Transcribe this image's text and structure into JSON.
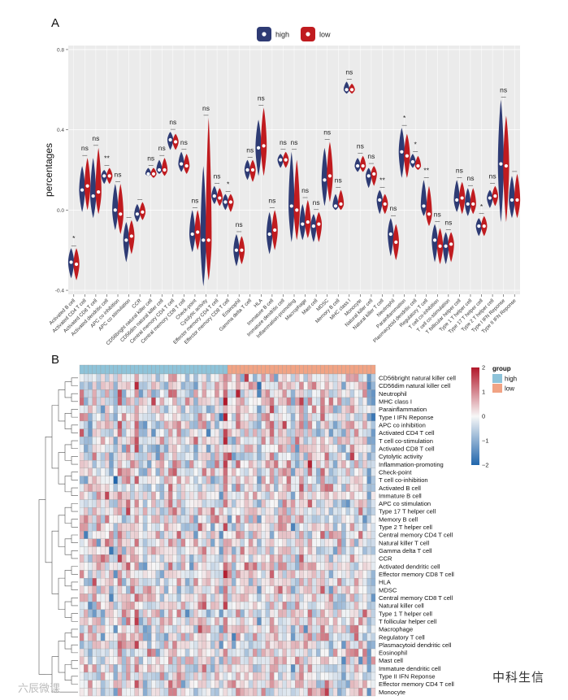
{
  "panel_a_label": "A",
  "panel_b_label": "B",
  "colors": {
    "high": "#2e3b74",
    "low": "#c01b1f",
    "group_high": "#8ec3d9",
    "group_low": "#f1a384",
    "heat_low": "#2166ac",
    "heat_mid": "#f7f7f7",
    "heat_high": "#b2182b"
  },
  "chart_data": [
    {
      "type": "violin",
      "title": "",
      "ylabel": "percentages",
      "ylim": [
        -0.42,
        0.82
      ],
      "yticks": [
        "-0.4",
        "0.0",
        "0.4",
        "0.8"
      ],
      "ytick_values": [
        -0.4,
        0.0,
        0.4,
        0.8
      ],
      "legend": [
        "high",
        "low"
      ],
      "categories": [
        "Activated B cell",
        "Activated CD4 T cell",
        "Activated CD8 T cell",
        "Activated dendritic cell",
        "APC co inhibition",
        "APC co stimulation",
        "CCR",
        "CD56bright natural killer cell",
        "CD56dim natural killer cell",
        "Central memory CD4 T cell",
        "Central memory CD8 T cell",
        "Check-point",
        "Cytolytic activity",
        "Effector memory CD4 T cell",
        "Effector memory CD8 T cell",
        "Eosinophil",
        "Gamma delta T cell",
        "HLA",
        "Immature B cell",
        "Immature dendritic cell",
        "Inflammation-promoting",
        "Macrophage",
        "Mast cell",
        "MDSC",
        "Memory B cell",
        "MHC class I",
        "Monocyte",
        "Natural killer cell",
        "Natural killer T cell",
        "Neutrophil",
        "Parainflammation",
        "Plasmacytoid dendritic cell",
        "Regulatory T cell",
        "T cell co-inhibition",
        "T cell co-stimulation",
        "T follicular helper cell",
        "Type 1 T helper cell",
        "Type 17 T helper cell",
        "Type 2 T helper cell",
        "Type I IFN Reponse",
        "Type II IFN Reponse"
      ],
      "significance": [
        "*",
        "ns",
        "ns",
        "**",
        "ns",
        "",
        "",
        "ns",
        "ns",
        "ns",
        "ns",
        "ns",
        "ns",
        "ns",
        "*",
        "ns",
        "ns",
        "ns",
        "ns",
        "ns",
        "ns",
        "ns",
        "ns",
        "ns",
        "ns",
        "ns",
        "ns",
        "ns",
        "**",
        "ns",
        "*",
        "*",
        "**",
        "ns",
        "ns",
        "ns",
        "ns",
        "*",
        "ns",
        "ns",
        ""
      ],
      "series": [
        {
          "name": "high",
          "medians": [
            -0.26,
            0.1,
            0.07,
            0.17,
            0.0,
            -0.15,
            -0.02,
            0.18,
            0.2,
            0.35,
            0.23,
            -0.12,
            -0.15,
            0.07,
            0.04,
            -0.2,
            0.2,
            0.31,
            -0.12,
            0.25,
            0.02,
            -0.07,
            -0.08,
            0.15,
            0.02,
            0.6,
            0.22,
            0.17,
            0.05,
            -0.12,
            0.29,
            0.24,
            0.02,
            -0.15,
            -0.18,
            0.05,
            0.03,
            -0.08,
            0.06,
            0.23,
            0.05
          ],
          "mins": [
            -0.34,
            -0.01,
            -0.04,
            0.13,
            -0.1,
            -0.26,
            -0.06,
            0.17,
            0.18,
            0.3,
            0.19,
            -0.21,
            -0.38,
            0.03,
            0.0,
            -0.28,
            0.15,
            0.17,
            -0.22,
            0.21,
            -0.16,
            -0.15,
            -0.16,
            0.02,
            0.0,
            0.58,
            0.19,
            0.11,
            -0.02,
            -0.23,
            0.16,
            0.21,
            -0.03,
            -0.26,
            -0.27,
            -0.01,
            -0.03,
            -0.13,
            0.01,
            -0.06,
            -0.04
          ],
          "maxs": [
            -0.19,
            0.22,
            0.26,
            0.2,
            0.13,
            -0.06,
            0.03,
            0.21,
            0.25,
            0.39,
            0.29,
            0.0,
            0.22,
            0.12,
            0.08,
            -0.12,
            0.25,
            0.45,
            -0.01,
            0.28,
            0.29,
            0.03,
            -0.02,
            0.31,
            0.08,
            0.64,
            0.26,
            0.21,
            0.1,
            -0.04,
            0.41,
            0.28,
            0.15,
            -0.07,
            -0.11,
            0.15,
            0.11,
            -0.04,
            0.1,
            0.55,
            0.17
          ]
        },
        {
          "name": "low",
          "medians": [
            -0.27,
            0.12,
            0.09,
            0.17,
            -0.02,
            -0.13,
            -0.01,
            0.18,
            0.2,
            0.34,
            0.22,
            -0.11,
            -0.15,
            0.06,
            0.04,
            -0.2,
            0.2,
            0.32,
            -0.1,
            0.25,
            0.0,
            -0.06,
            -0.07,
            0.17,
            0.03,
            0.6,
            0.22,
            0.18,
            0.03,
            -0.16,
            0.27,
            0.22,
            -0.02,
            -0.18,
            -0.17,
            0.06,
            0.03,
            -0.08,
            0.07,
            0.22,
            0.05
          ],
          "mins": [
            -0.35,
            0.0,
            -0.02,
            0.13,
            -0.12,
            -0.22,
            -0.05,
            0.16,
            0.17,
            0.3,
            0.18,
            -0.2,
            -0.35,
            0.02,
            -0.01,
            -0.27,
            0.14,
            0.17,
            -0.2,
            0.21,
            -0.15,
            -0.14,
            -0.16,
            0.04,
            0.0,
            0.58,
            0.19,
            0.12,
            -0.02,
            -0.25,
            0.16,
            0.2,
            -0.08,
            -0.27,
            -0.26,
            -0.02,
            -0.02,
            -0.13,
            0.02,
            -0.06,
            -0.04
          ],
          "maxs": [
            -0.19,
            0.26,
            0.31,
            0.21,
            0.13,
            -0.05,
            0.04,
            0.21,
            0.26,
            0.38,
            0.28,
            0.0,
            0.46,
            0.11,
            0.08,
            -0.13,
            0.25,
            0.51,
            0.0,
            0.29,
            0.25,
            0.05,
            -0.01,
            0.34,
            0.1,
            0.63,
            0.27,
            0.22,
            0.08,
            -0.07,
            0.38,
            0.27,
            0.12,
            -0.09,
            -0.11,
            0.14,
            0.11,
            -0.03,
            0.12,
            0.47,
            0.18
          ]
        }
      ]
    },
    {
      "type": "heatmap",
      "rows": [
        "CD56bright natural killer cell",
        "CD56dim natural killer cell",
        "Neutrophil",
        "MHC class I",
        "Parainflammation",
        "Type I IFN Reponse",
        "APC co inhibition",
        "Activated CD4 T cell",
        "T cell co-stimulation",
        "Activated CD8 T cell",
        "Cytolytic activity",
        "Inflammation-promoting",
        "Check-point",
        "T cell co-inhibition",
        "Activated B cell",
        "Immature  B cell",
        "APC co stimulation",
        "Type 17 T helper cell",
        "Memory B cell",
        "Type 2 T helper cell",
        "Central memory CD4 T cell",
        "Natural killer T cell",
        "Gamma delta T cell",
        "CCR",
        "Activated dendritic cell",
        "Effector memory CD8 T cell",
        "HLA",
        "MDSC",
        "Central memory CD8 T cell",
        "Natural killer cell",
        "Type 1 T helper cell",
        "T follicular helper cell",
        "Macrophage",
        "Regulatory T cell",
        "Plasmacytoid dendritic cell",
        "Eosinophil",
        "Mast cell",
        "Immature dendritic cell",
        "Type II IFN Reponse",
        "Effector memory CD4 T cell",
        "Monocyte"
      ],
      "n_columns": 70,
      "group_sizes": {
        "high": 35,
        "low": 35
      },
      "legend_title": "group",
      "legend_groups": [
        "high",
        "low"
      ],
      "color_scale": [
        -2,
        2
      ],
      "scale_ticks": [
        "2",
        "1",
        "0",
        "−1",
        "−2"
      ],
      "scale_tick_values": [
        2,
        1,
        0,
        -1,
        -2
      ],
      "seed": 20240611
    }
  ],
  "watermark_left": "六辰微课",
  "watermark_right": "中科生信"
}
